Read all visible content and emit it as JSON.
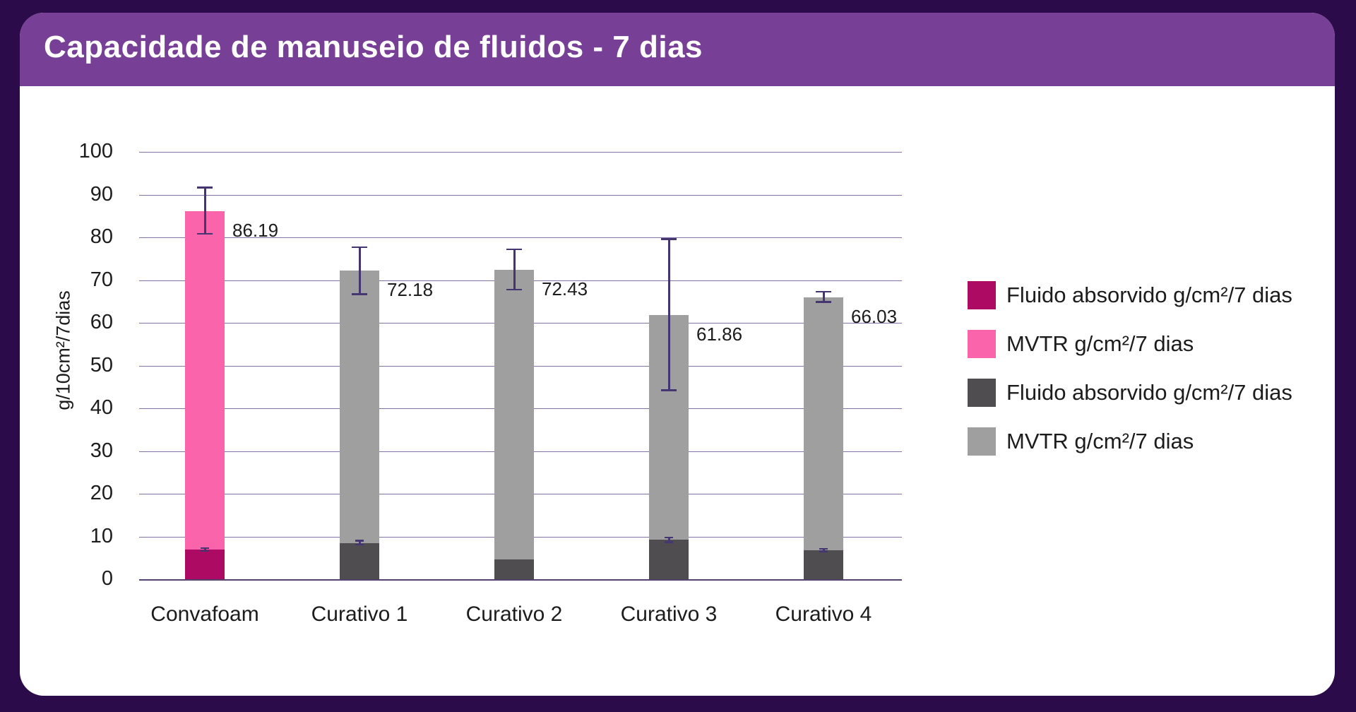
{
  "header": {
    "title": "Capacidade de manuseio de fluidos - 7 dias"
  },
  "colors": {
    "background": "#2B0B4A",
    "header_bar": "#774096",
    "card": "#FFFFFF",
    "gridline": "#8273A4",
    "zero_line": "#53416E",
    "error_bar": "#453672",
    "text": "#1C1C1C",
    "magenta": "#AD0A63",
    "pink": "#FA64AB",
    "dark_gray": "#4F4D4F",
    "light_gray": "#A09FA0"
  },
  "chart_data": {
    "type": "bar",
    "stacked": true,
    "title": "Capacidade de manuseio de fluidos - 7 dias",
    "xlabel": "",
    "ylabel": "g/10cm²/7dias",
    "ylim": [
      0,
      100
    ],
    "yticks": [
      0,
      10,
      20,
      30,
      40,
      50,
      60,
      70,
      80,
      90,
      100
    ],
    "grid": true,
    "legend_position": "right",
    "categories": [
      "Convafoam",
      "Curativo 1",
      "Curativo 2",
      "Curativo 3",
      "Curativo 4"
    ],
    "series": [
      {
        "name": "Fluido absorvido g/cm²/7 dias",
        "values": [
          6.9,
          8.5,
          4.6,
          9.2,
          6.8
        ]
      },
      {
        "name": "MVTR g/cm²/7 dias",
        "values": [
          79.29,
          63.68,
          67.83,
          52.66,
          59.23
        ]
      }
    ],
    "totals": [
      86.19,
      72.18,
      72.43,
      61.86,
      66.03
    ],
    "total_labels": [
      "86.19",
      "72.18",
      "72.43",
      "61.86",
      "66.03"
    ],
    "total_err": [
      5.4,
      5.5,
      4.7,
      17.7,
      1.2
    ],
    "absorbed_err": [
      0.35,
      0.45,
      0,
      0.55,
      0.3
    ],
    "bar_styles": [
      {
        "bottom": "#AD0A63",
        "top": "#FA64AB"
      },
      {
        "bottom": "#4F4D4F",
        "top": "#A09FA0"
      },
      {
        "bottom": "#4F4D4F",
        "top": "#A09FA0"
      },
      {
        "bottom": "#4F4D4F",
        "top": "#A09FA0"
      },
      {
        "bottom": "#4F4D4F",
        "top": "#A09FA0"
      }
    ],
    "legend": [
      {
        "label": "Fluido absorvido g/cm²/7 dias",
        "color": "#AD0A63"
      },
      {
        "label": "MVTR g/cm²/7 dias",
        "color": "#FA64AB"
      },
      {
        "label": "Fluido absorvido g/cm²/7 dias",
        "color": "#4F4D4F"
      },
      {
        "label": "MVTR g/cm²/7 dias",
        "color": "#A09FA0"
      }
    ]
  }
}
